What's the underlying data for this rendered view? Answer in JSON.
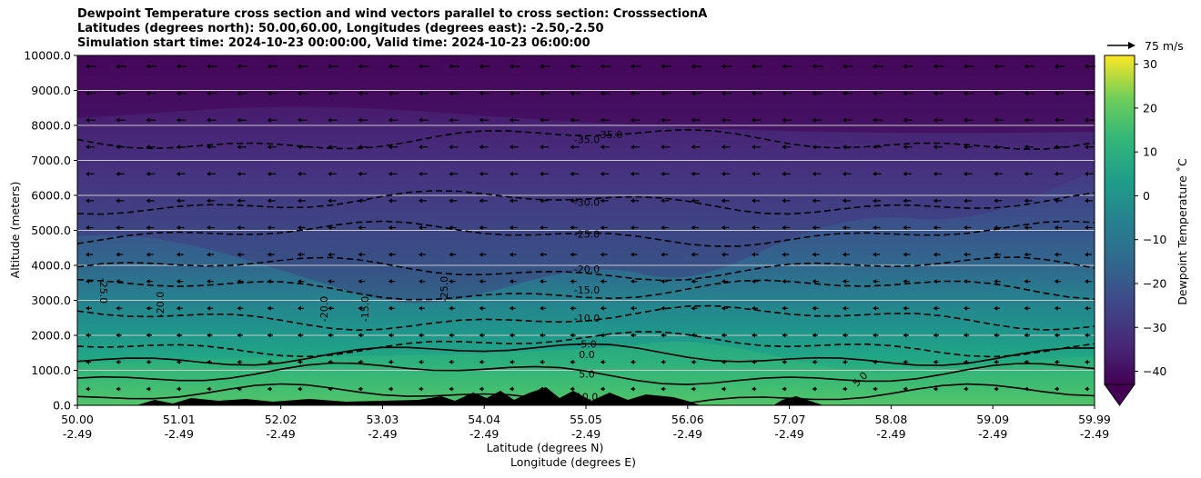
{
  "title_lines": [
    "Dewpoint Temperature cross section and wind vectors parallel to cross section: CrosssectionA",
    "Latitudes (degrees north): 50.00,60.00, Longitudes (degrees east): -2.50,-2.50",
    "Simulation start time: 2024-10-23 00:00:00, Valid time: 2024-10-23 06:00:00"
  ],
  "chart_data": {
    "type": "heatmap",
    "ylabel": "Altitude (meters)",
    "xlabel_lat": "Latitude (degrees N)",
    "xlabel_lon": "Longitude (degrees E)",
    "ylim": [
      0,
      10000
    ],
    "y_ticks": [
      "0.0",
      "1000.0",
      "2000.0",
      "3000.0",
      "4000.0",
      "5000.0",
      "6000.0",
      "7000.0",
      "8000.0",
      "9000.0",
      "10000.0"
    ],
    "x_ticks": [
      {
        "lat": "50.00",
        "lon": "-2.49"
      },
      {
        "lat": "51.01",
        "lon": "-2.49"
      },
      {
        "lat": "52.02",
        "lon": "-2.49"
      },
      {
        "lat": "53.03",
        "lon": "-2.49"
      },
      {
        "lat": "54.04",
        "lon": "-2.49"
      },
      {
        "lat": "55.05",
        "lon": "-2.49"
      },
      {
        "lat": "56.06",
        "lon": "-2.49"
      },
      {
        "lat": "57.07",
        "lon": "-2.49"
      },
      {
        "lat": "58.08",
        "lon": "-2.49"
      },
      {
        "lat": "59.09",
        "lon": "-2.49"
      },
      {
        "lat": "59.99",
        "lon": "-2.49"
      }
    ],
    "colorbar": {
      "label": "Dewpoint Temperature ˚C",
      "range": [
        -43,
        32
      ],
      "ticks": [
        "30",
        "20",
        "10",
        "0",
        "−10",
        "−20",
        "−30",
        "−40"
      ],
      "colormap": "viridis"
    },
    "wind_reference": "75 m/s",
    "contours": [
      {
        "level": -35.0,
        "label": "-35.0",
        "approx_altitude": 7600
      },
      {
        "level": -30.0,
        "label": "-30.0",
        "approx_altitude": 5800
      },
      {
        "level": -25.0,
        "label": "-25.0",
        "approx_altitude": 4900
      },
      {
        "level": -20.0,
        "label": "-20.0",
        "approx_altitude": 3900
      },
      {
        "level": -15.0,
        "label": "-15.0",
        "approx_altitude": 3300
      },
      {
        "level": -10.0,
        "label": "-10.0",
        "approx_altitude": 2500
      },
      {
        "level": -5.0,
        "label": "-5.0",
        "approx_altitude": 1750
      },
      {
        "level": 0.0,
        "label": "0.0",
        "approx_altitude": 1450
      },
      {
        "level": 5.0,
        "label": "5.0",
        "approx_altitude": 900
      },
      {
        "level": 10.0,
        "label": "10.0",
        "approx_altitude": 250
      }
    ],
    "extra_contour_labels": [
      "-35.0",
      "-25.0",
      "-20.0",
      "-20.0",
      "-15.0",
      "-25.0",
      "5.0"
    ]
  }
}
